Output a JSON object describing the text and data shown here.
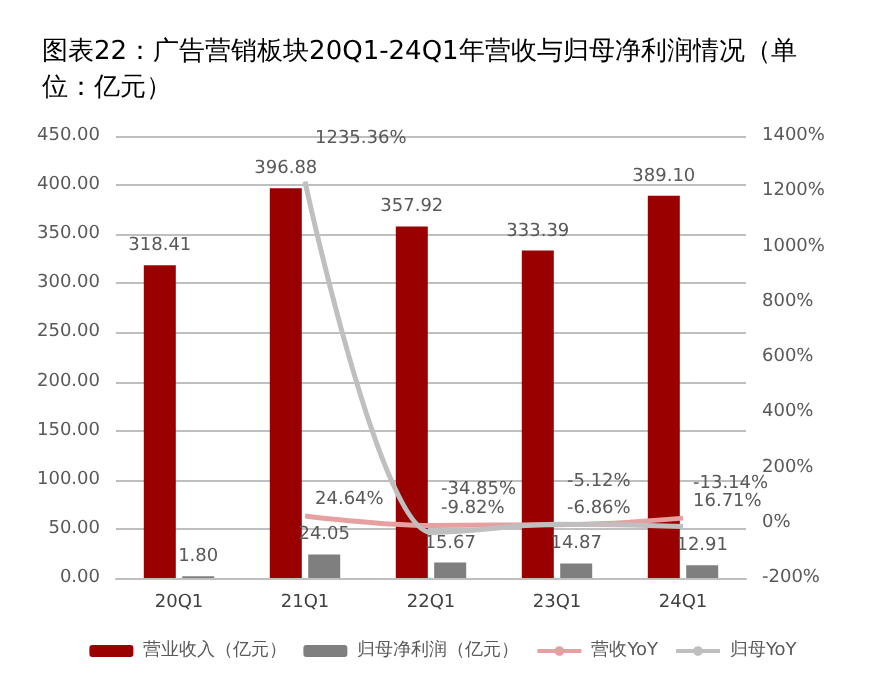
{
  "chart_data": {
    "type": "bar",
    "title": "图表22：广告营销板块20Q1-24Q1年营收与归母净利润情况（单位：亿元）",
    "categories": [
      "20Q1",
      "21Q1",
      "22Q1",
      "23Q1",
      "24Q1"
    ],
    "series": [
      {
        "name": "营业收入（亿元）",
        "color": "#990000",
        "values": [
          318.41,
          396.88,
          357.92,
          333.39,
          389.1
        ],
        "value_labels": [
          "318.41",
          "396.88",
          "357.92",
          "333.39",
          "389.10"
        ]
      },
      {
        "name": "归母净利润（亿元）",
        "color": "#7f7f7f",
        "values": [
          1.8,
          24.05,
          15.67,
          14.87,
          12.91
        ],
        "value_labels": [
          "1.80",
          "24.05",
          "15.67",
          "14.87",
          "12.91"
        ]
      },
      {
        "name": "营收YoY",
        "type": "line",
        "axis": "y2",
        "color": "#e6a0a0",
        "values": [
          null,
          24.64,
          -9.82,
          -6.86,
          16.71
        ],
        "value_labels": [
          null,
          "24.64%",
          "-9.82%",
          "-6.86%",
          "16.71%"
        ]
      },
      {
        "name": "归母YoY",
        "type": "line",
        "axis": "y2",
        "color": "#bfbfbf",
        "values": [
          null,
          1235.36,
          -34.85,
          -5.12,
          -13.14
        ],
        "value_labels": [
          null,
          "1235.36%",
          "-34.85%",
          "-5.12%",
          "-13.14%"
        ]
      }
    ],
    "ylim": [
      0,
      450
    ],
    "yticks": [
      {
        "value": 0,
        "label": "0.00"
      },
      {
        "value": 50,
        "label": "50.00"
      },
      {
        "value": 100,
        "label": "100.00"
      },
      {
        "value": 150,
        "label": "150.00"
      },
      {
        "value": 200,
        "label": "200.00"
      },
      {
        "value": 250,
        "label": "250.00"
      },
      {
        "value": 300,
        "label": "300.00"
      },
      {
        "value": 350,
        "label": "350.00"
      },
      {
        "value": 400,
        "label": "400.00"
      },
      {
        "value": 450,
        "label": "450.00"
      }
    ],
    "y2lim": [
      -200,
      1400
    ],
    "y2ticks": [
      {
        "value": -200,
        "label": "-200%"
      },
      {
        "value": 0,
        "label": "0%"
      },
      {
        "value": 200,
        "label": "200%"
      },
      {
        "value": 400,
        "label": "400%"
      },
      {
        "value": 600,
        "label": "600%"
      },
      {
        "value": 800,
        "label": "800%"
      },
      {
        "value": 1000,
        "label": "1000%"
      },
      {
        "value": 1200,
        "label": "1200%"
      },
      {
        "value": 1400,
        "label": "1400%"
      }
    ],
    "grid": "y",
    "legend": "bottom",
    "marker": "none"
  }
}
